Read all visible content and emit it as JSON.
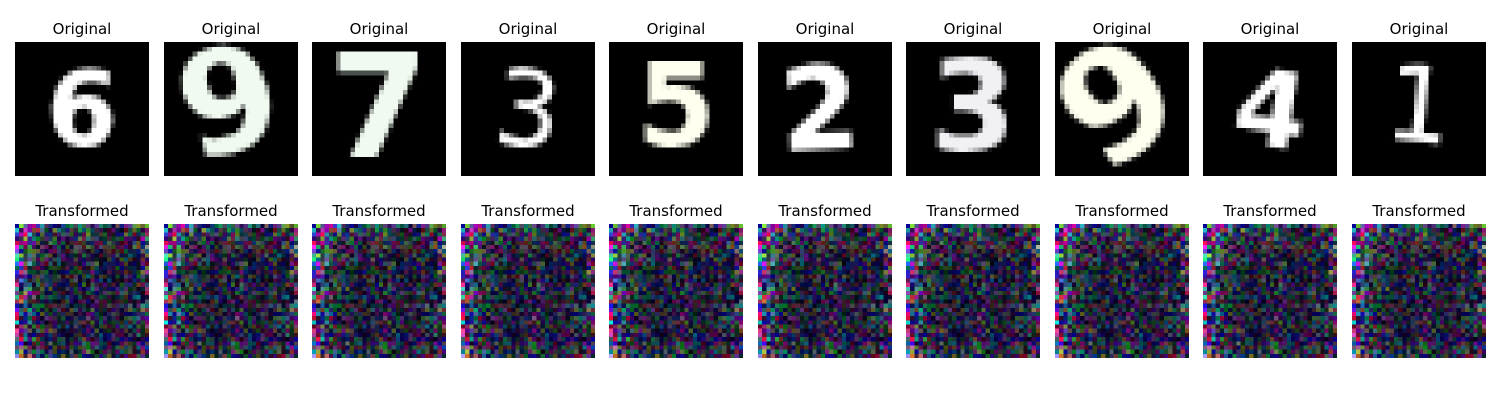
{
  "rows": [
    {
      "title": "Original",
      "panels": [
        {
          "digit": "6",
          "tint": "#ffffff"
        },
        {
          "digit": "9",
          "tint": "#f0faf0"
        },
        {
          "digit": "7",
          "tint": "#f0faf0"
        },
        {
          "digit": "3",
          "tint": "#ffffff"
        },
        {
          "digit": "5",
          "tint": "#fffff0"
        },
        {
          "digit": "2",
          "tint": "#ffffff"
        },
        {
          "digit": "3",
          "tint": "#f0f0f5"
        },
        {
          "digit": "9",
          "tint": "#fffff0"
        },
        {
          "digit": "4",
          "tint": "#ffffff"
        },
        {
          "digit": "1",
          "tint": "#ffffff"
        }
      ]
    },
    {
      "title": "Transformed",
      "panels": [
        {
          "content": "noise"
        },
        {
          "content": "noise"
        },
        {
          "content": "noise"
        },
        {
          "content": "noise"
        },
        {
          "content": "noise"
        },
        {
          "content": "noise"
        },
        {
          "content": "noise"
        },
        {
          "content": "noise"
        },
        {
          "content": "noise"
        },
        {
          "content": "noise"
        }
      ]
    }
  ],
  "colors": {
    "background": "#ffffff",
    "image_background": "#000000"
  }
}
